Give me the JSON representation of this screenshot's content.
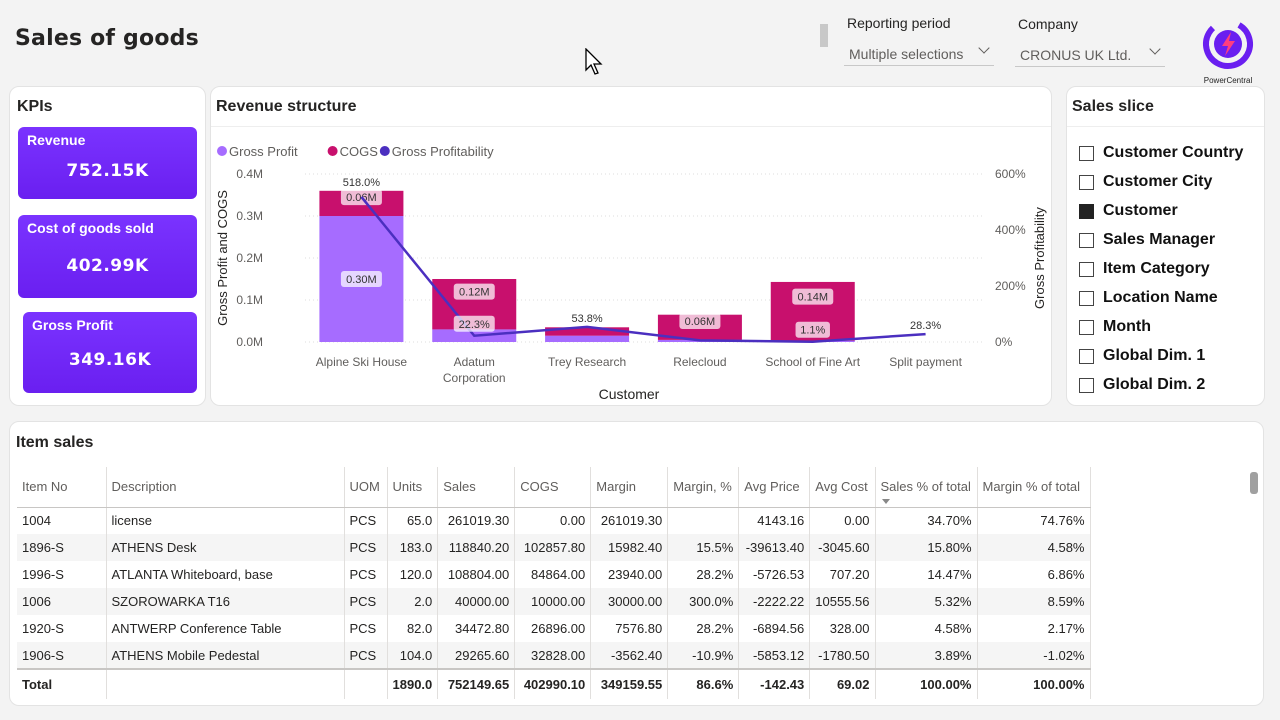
{
  "header": {
    "title": "Sales of goods",
    "reporting_period_label": "Reporting period",
    "reporting_period_value": "Multiple selections",
    "company_label": "Company",
    "company_value": "CRONUS UK Ltd.",
    "logo_text": "PowerCentral"
  },
  "kpis": {
    "title": "KPIs",
    "items": [
      {
        "label": "Revenue",
        "value": "752.15K"
      },
      {
        "label": "Cost of goods sold",
        "value": "402.99K"
      },
      {
        "label": "Gross Profit",
        "value": "349.16K"
      }
    ]
  },
  "revenue": {
    "title": "Revenue structure"
  },
  "chart_data": {
    "type": "bar",
    "title": "Revenue structure",
    "xlabel": "Customer",
    "ylabel": "Gross Profit and COGS",
    "y2label": "Gross Profitability",
    "categories": [
      "Alpine Ski House",
      "Adatum Corporation",
      "Trey Research",
      "Relecloud",
      "School of Fine Art",
      "Split payment"
    ],
    "category_lines": [
      [
        "Alpine Ski House"
      ],
      [
        "Adatum",
        "Corporation"
      ],
      [
        "Trey Research"
      ],
      [
        "Relecloud"
      ],
      [
        "School of Fine Art"
      ],
      [
        "Split payment"
      ]
    ],
    "series": [
      {
        "name": "Gross Profit",
        "kind": "bar",
        "color": "#a66cff",
        "values": [
          0.3,
          0.03,
          0.015,
          0.005,
          0.003,
          0.0
        ]
      },
      {
        "name": "COGS",
        "kind": "bar",
        "color": "#c8106d",
        "values": [
          0.06,
          0.12,
          0.02,
          0.06,
          0.14,
          0.0
        ]
      },
      {
        "name": "Gross Profitability",
        "kind": "line",
        "axis": "right",
        "color": "#4b2fc0",
        "values": [
          518.0,
          22.3,
          53.8,
          6.0,
          1.1,
          28.3
        ]
      }
    ],
    "bar_labels": [
      {
        "series": "Gross Profit",
        "labels": [
          "0.30M",
          "",
          "",
          "",
          "",
          ""
        ]
      },
      {
        "series": "COGS",
        "labels": [
          "0.06M",
          "0.12M",
          "",
          "0.06M",
          "0.14M",
          ""
        ]
      }
    ],
    "line_labels": [
      "518.0%",
      "22.3%",
      "53.8%",
      "",
      "1.1%",
      "28.3%"
    ],
    "ylim": [
      0,
      0.4
    ],
    "yticks": [
      "0.0M",
      "0.1M",
      "0.2M",
      "0.3M",
      "0.4M"
    ],
    "y2lim": [
      0,
      600
    ],
    "y2ticks": [
      "0%",
      "200%",
      "400%",
      "600%"
    ],
    "legend": "top-left",
    "grid": true
  },
  "slicer": {
    "title": "Sales slice",
    "items": [
      {
        "label": "Customer Country",
        "checked": false
      },
      {
        "label": "Customer City",
        "checked": false
      },
      {
        "label": "Customer",
        "checked": true
      },
      {
        "label": "Sales Manager",
        "checked": false
      },
      {
        "label": "Item Category",
        "checked": false
      },
      {
        "label": "Location Name",
        "checked": false
      },
      {
        "label": "Month",
        "checked": false
      },
      {
        "label": "Global Dim. 1",
        "checked": false
      },
      {
        "label": "Global Dim. 2",
        "checked": false
      }
    ]
  },
  "item_sales": {
    "title": "Item sales",
    "columns": [
      "Item No",
      "Description",
      "UOM",
      "Units",
      "Sales",
      "COGS",
      "Margin",
      "Margin, %",
      "Avg Price",
      "Avg Cost",
      "Sales % of total",
      "Margin % of total"
    ],
    "rows": [
      [
        "1004",
        "license",
        "PCS",
        "65.0",
        "261019.30",
        "0.00",
        "261019.30",
        "",
        "4143.16",
        "0.00",
        "34.70%",
        "74.76%"
      ],
      [
        "1896-S",
        "ATHENS Desk",
        "PCS",
        "183.0",
        "118840.20",
        "102857.80",
        "15982.40",
        "15.5%",
        "-39613.40",
        "-3045.60",
        "15.80%",
        "4.58%"
      ],
      [
        "1996-S",
        "ATLANTA Whiteboard, base",
        "PCS",
        "120.0",
        "108804.00",
        "84864.00",
        "23940.00",
        "28.2%",
        "-5726.53",
        "707.20",
        "14.47%",
        "6.86%"
      ],
      [
        "1006",
        "SZOROWARKA T16",
        "PCS",
        "2.0",
        "40000.00",
        "10000.00",
        "30000.00",
        "300.0%",
        "-2222.22",
        "10555.56",
        "5.32%",
        "8.59%"
      ],
      [
        "1920-S",
        "ANTWERP Conference Table",
        "PCS",
        "82.0",
        "34472.80",
        "26896.00",
        "7576.80",
        "28.2%",
        "-6894.56",
        "328.00",
        "4.58%",
        "2.17%"
      ],
      [
        "1906-S",
        "ATHENS Mobile Pedestal",
        "PCS",
        "104.0",
        "29265.60",
        "32828.00",
        "-3562.40",
        "-10.9%",
        "-5853.12",
        "-1780.50",
        "3.89%",
        "-1.02%"
      ]
    ],
    "total": [
      "Total",
      "",
      "",
      "1890.0",
      "752149.65",
      "402990.10",
      "349159.55",
      "86.6%",
      "-142.43",
      "69.02",
      "100.00%",
      "100.00%"
    ]
  }
}
